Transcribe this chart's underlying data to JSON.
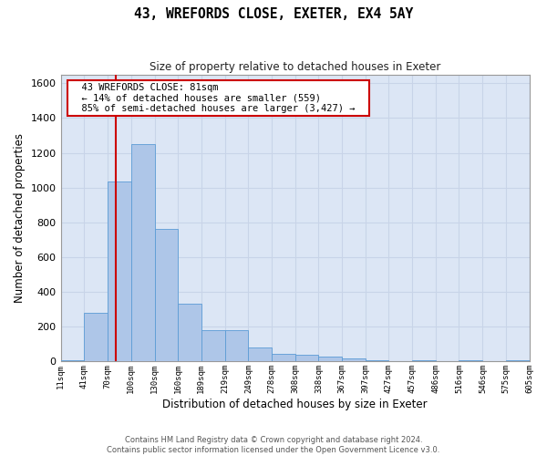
{
  "title": "43, WREFORDS CLOSE, EXETER, EX4 5AY",
  "subtitle": "Size of property relative to detached houses in Exeter",
  "xlabel": "Distribution of detached houses by size in Exeter",
  "ylabel": "Number of detached properties",
  "footer_line1": "Contains HM Land Registry data © Crown copyright and database right 2024.",
  "footer_line2": "Contains public sector information licensed under the Open Government Licence v3.0.",
  "property_label": "43 WREFORDS CLOSE: 81sqm",
  "annotation_line1": "← 14% of detached houses are smaller (559)",
  "annotation_line2": "85% of semi-detached houses are larger (3,427) →",
  "property_size": 81,
  "bin_edges": [
    11,
    41,
    70,
    100,
    130,
    160,
    189,
    219,
    249,
    278,
    308,
    338,
    367,
    397,
    427,
    457,
    486,
    516,
    546,
    575,
    605
  ],
  "bin_labels": [
    "11sqm",
    "41sqm",
    "70sqm",
    "100sqm",
    "130sqm",
    "160sqm",
    "189sqm",
    "219sqm",
    "249sqm",
    "278sqm",
    "308sqm",
    "338sqm",
    "367sqm",
    "397sqm",
    "427sqm",
    "457sqm",
    "486sqm",
    "516sqm",
    "546sqm",
    "575sqm",
    "605sqm"
  ],
  "bar_heights": [
    10,
    280,
    1035,
    1250,
    760,
    335,
    180,
    180,
    80,
    45,
    40,
    30,
    20,
    10,
    0,
    10,
    0,
    10,
    0,
    10
  ],
  "bar_color": "#aec6e8",
  "bar_edge_color": "#5b9bd5",
  "grid_color": "#c8d4e8",
  "vline_color": "#cc0000",
  "vline_x": 81,
  "annotation_box_color": "#cc0000",
  "plot_bg_color": "#dce6f5",
  "ylim": [
    0,
    1650
  ],
  "yticks": [
    0,
    200,
    400,
    600,
    800,
    1000,
    1200,
    1400,
    1600
  ],
  "xlim": [
    11,
    605
  ]
}
